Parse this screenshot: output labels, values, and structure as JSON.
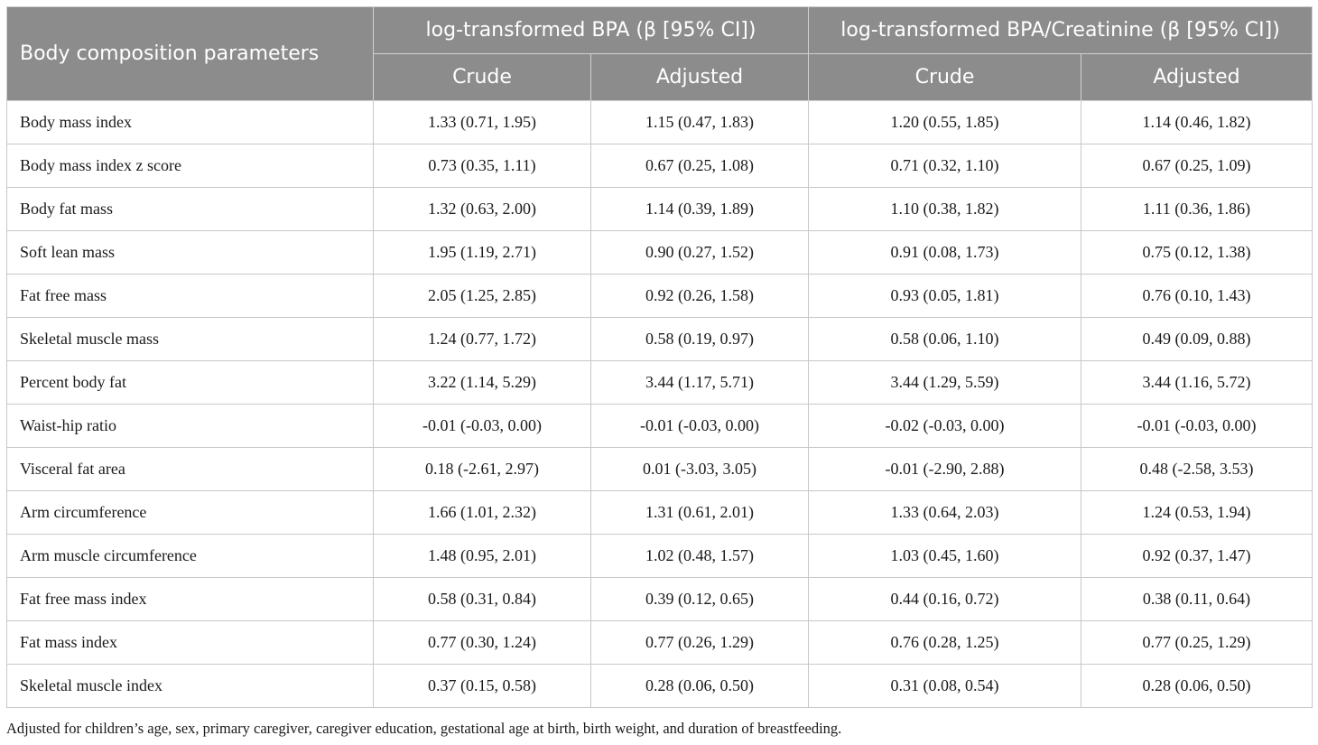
{
  "table": {
    "header": {
      "row_label": "Body composition parameters",
      "group1": "log-transformed BPA (β [95% CI])",
      "group2": "log-transformed BPA/Creatinine (β [95% CI])",
      "sub": [
        "Crude",
        "Adjusted",
        "Crude",
        "Adjusted"
      ]
    },
    "rows": [
      [
        "Body mass index",
        "1.33 (0.71, 1.95)",
        "1.15 (0.47, 1.83)",
        "1.20 (0.55, 1.85)",
        "1.14 (0.46, 1.82)"
      ],
      [
        "Body mass index z score",
        "0.73 (0.35, 1.11)",
        "0.67 (0.25, 1.08)",
        "0.71 (0.32, 1.10)",
        "0.67 (0.25, 1.09)"
      ],
      [
        "Body fat mass",
        "1.32 (0.63, 2.00)",
        "1.14 (0.39, 1.89)",
        "1.10 (0.38, 1.82)",
        "1.11 (0.36, 1.86)"
      ],
      [
        "Soft lean mass",
        "1.95 (1.19, 2.71)",
        "0.90 (0.27, 1.52)",
        "0.91 (0.08, 1.73)",
        "0.75 (0.12, 1.38)"
      ],
      [
        "Fat free mass",
        "2.05 (1.25, 2.85)",
        "0.92 (0.26, 1.58)",
        "0.93 (0.05, 1.81)",
        "0.76 (0.10, 1.43)"
      ],
      [
        "Skeletal muscle mass",
        "1.24 (0.77, 1.72)",
        "0.58 (0.19, 0.97)",
        "0.58 (0.06, 1.10)",
        "0.49 (0.09, 0.88)"
      ],
      [
        "Percent body fat",
        "3.22 (1.14, 5.29)",
        "3.44 (1.17, 5.71)",
        "3.44 (1.29, 5.59)",
        "3.44 (1.16, 5.72)"
      ],
      [
        "Waist-hip ratio",
        "-0.01 (-0.03, 0.00)",
        "-0.01 (-0.03, 0.00)",
        "-0.02 (-0.03, 0.00)",
        "-0.01 (-0.03, 0.00)"
      ],
      [
        "Visceral fat area",
        "0.18 (-2.61, 2.97)",
        "0.01 (-3.03, 3.05)",
        "-0.01 (-2.90, 2.88)",
        "0.48 (-2.58, 3.53)"
      ],
      [
        "Arm circumference",
        "1.66 (1.01, 2.32)",
        "1.31 (0.61, 2.01)",
        "1.33 (0.64, 2.03)",
        "1.24 (0.53, 1.94)"
      ],
      [
        "Arm muscle circumference",
        "1.48 (0.95, 2.01)",
        "1.02 (0.48, 1.57)",
        "1.03 (0.45, 1.60)",
        "0.92 (0.37, 1.47)"
      ],
      [
        "Fat free mass index",
        "0.58 (0.31, 0.84)",
        "0.39 (0.12, 0.65)",
        "0.44 (0.16, 0.72)",
        "0.38 (0.11, 0.64)"
      ],
      [
        "Fat mass index",
        "0.77 (0.30, 1.24)",
        "0.77 (0.26, 1.29)",
        "0.76 (0.28, 1.25)",
        "0.77 (0.25, 1.29)"
      ],
      [
        "Skeletal muscle index",
        "0.37 (0.15, 0.58)",
        "0.28 (0.06, 0.50)",
        "0.31 (0.08, 0.54)",
        "0.28 (0.06, 0.50)"
      ]
    ]
  },
  "footnote": "Adjusted for children’s age, sex, primary caregiver, caregiver education, gestational age at birth, birth weight, and duration of breastfeeding."
}
